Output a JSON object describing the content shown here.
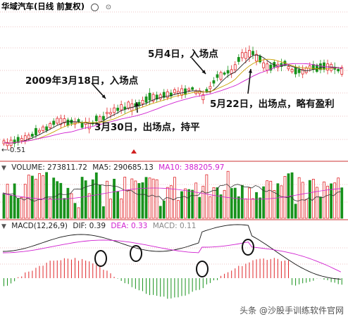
{
  "price_panel": {
    "title": "华域汽车(日线 前复权)",
    "low_label": "-0.51",
    "annotations": [
      "2009年3月18日，入场点",
      "3月30日，出场点，持平",
      "5月4日，入场点",
      "5月22日，出场点，略有盈利"
    ]
  },
  "volume_panel": {
    "label": "VOLUME: 273811.72",
    "ma5": "MA5: 290685.13",
    "ma10": "MA10: 388205.97"
  },
  "macd_panel": {
    "label": "MACD(12,26,9)",
    "dif": "DIF: 0.39",
    "dea": "DEA: 0.33",
    "macd": "MACD: 0.11"
  },
  "watermark": "头条 @沙股手训练软件官网",
  "colors": {
    "up": "#e0262a",
    "down": "#18921c",
    "ma_white": "#222222",
    "ma_yellow": "#c8a000",
    "ma_magenta": "#d020d0",
    "grid": "#d05050"
  }
}
